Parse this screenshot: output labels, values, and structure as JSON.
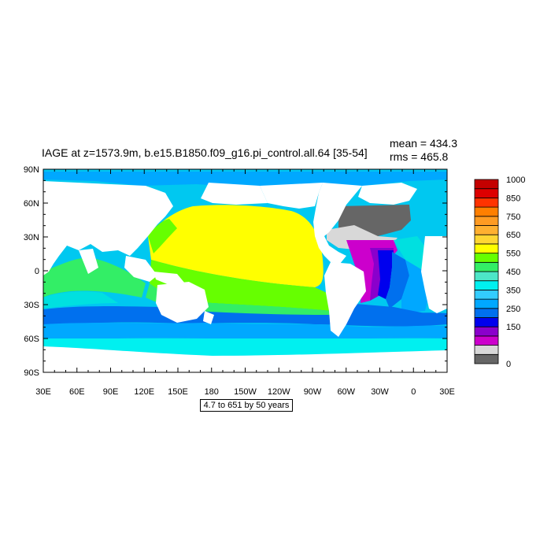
{
  "title": {
    "main": "IAGE at z=1573.9m, b.e15.B1850.f09_g16.pi_control.all.64 [35-54]",
    "mean": "mean = 434.3",
    "rms": "rms = 465.8"
  },
  "range_label": "4.7 to 651 by 50 years",
  "axes": {
    "y_ticks": [
      "90N",
      "60N",
      "30N",
      "0",
      "30S",
      "60S",
      "90S"
    ],
    "x_ticks": [
      "30E",
      "60E",
      "90E",
      "120E",
      "150E",
      "180",
      "150W",
      "120W",
      "90W",
      "60W",
      "30W",
      "0",
      "30E"
    ]
  },
  "colorbar": {
    "colors": [
      "#666666",
      "#d8d8d8",
      "#cc00cc",
      "#8a00cc",
      "#0000ee",
      "#0070ee",
      "#00a8ff",
      "#33ccff",
      "#00f0f0",
      "#4de6c8",
      "#33ee66",
      "#66ff00",
      "#ffff00",
      "#ffd633",
      "#ffb030",
      "#ff9b22",
      "#ff7f00",
      "#ff3300",
      "#dd0000",
      "#c40000"
    ],
    "labels": [
      "0",
      "150",
      "250",
      "350",
      "450",
      "550",
      "650",
      "750",
      "850",
      "1000"
    ]
  },
  "legend": {
    "land": "#ffffff",
    "gridlines": false
  }
}
